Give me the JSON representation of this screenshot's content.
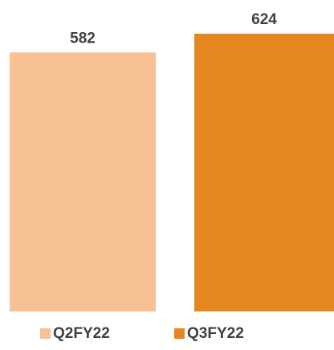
{
  "chart_data": {
    "type": "bar",
    "categories": [
      "Q2FY22",
      "Q3FY22"
    ],
    "series": [
      {
        "values": [
          582,
          624
        ]
      }
    ],
    "data_labels": [
      "582",
      "624"
    ],
    "legend": {
      "position": "bottom",
      "entries": [
        "Q2FY22",
        "Q3FY22"
      ]
    },
    "title": "",
    "xlabel": "",
    "ylabel": "",
    "ylim": [
      0,
      624
    ],
    "grid": false,
    "colors": [
      "#F8C194",
      "#E6861E"
    ]
  }
}
